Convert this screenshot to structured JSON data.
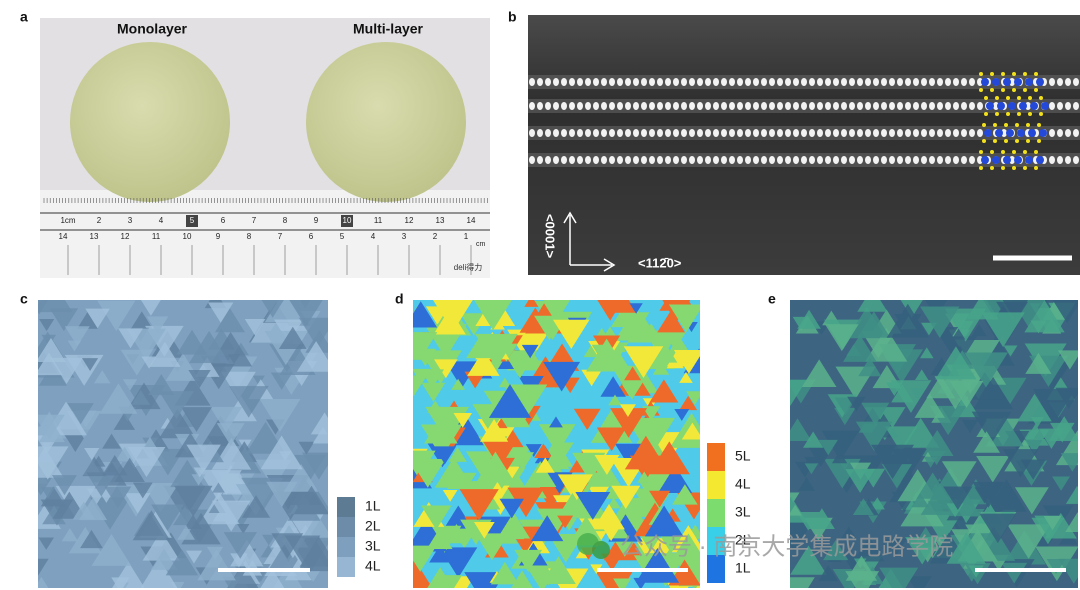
{
  "panel_a": {
    "label": "a",
    "wafer_labels": [
      "Monolayer",
      "Multi-layer"
    ],
    "ruler_top": [
      "1cm",
      "2",
      "3",
      "4",
      "5",
      "6",
      "7",
      "8",
      "9",
      "10",
      "11",
      "12",
      "13",
      "14"
    ],
    "ruler_bottom": [
      "14",
      "13",
      "12",
      "11",
      "10",
      "9",
      "8",
      "7",
      "6",
      "5",
      "4",
      "3",
      "2",
      "1"
    ],
    "ruler_unit": "cm",
    "ruler_brand": "deli得力"
  },
  "panel_b": {
    "label": "b",
    "axis_vertical": "<0001>",
    "axis_horizontal": "<112̄0>"
  },
  "panel_c": {
    "label": "c",
    "colorbar": [
      "1L",
      "2L",
      "3L",
      "4L"
    ]
  },
  "panel_d": {
    "label": "d",
    "colorbar": [
      "5L",
      "4L",
      "3L",
      "2L",
      "1L"
    ]
  },
  "panel_e": {
    "label": "e"
  },
  "watermark": "公众号 · 南京大学集成电路学院"
}
